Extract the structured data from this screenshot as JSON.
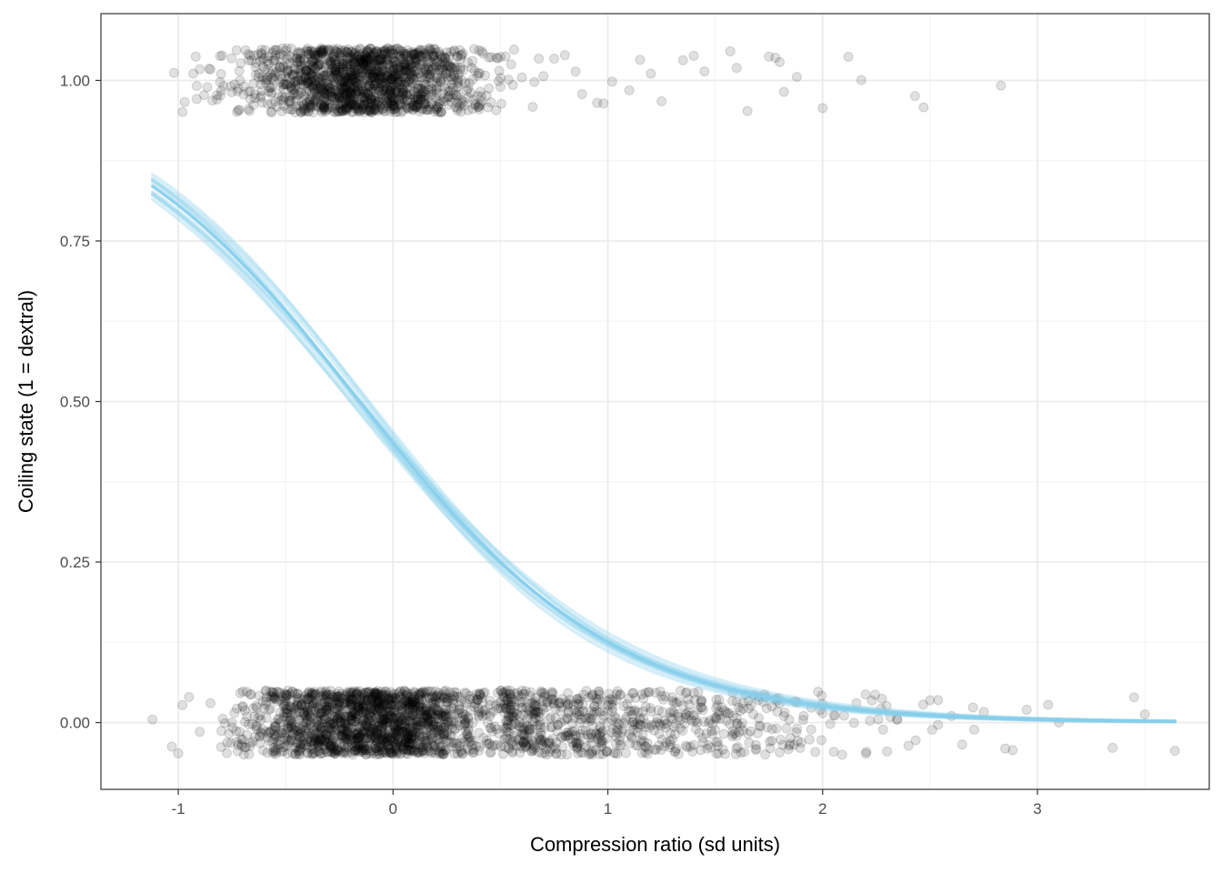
{
  "chart_data": {
    "type": "scatter",
    "title": "",
    "xlabel": "Compression ratio (sd units)",
    "ylabel": "Coiling state (1 = dextral)",
    "xlim": [
      -1.36,
      3.8
    ],
    "ylim": [
      -0.104,
      1.104
    ],
    "x_ticks": [
      -1,
      0,
      1,
      2,
      3
    ],
    "x_tick_labels": [
      "-1",
      "0",
      "1",
      "2",
      "3"
    ],
    "y_ticks": [
      0,
      0.25,
      0.5,
      0.75,
      1
    ],
    "y_tick_labels": [
      "0.00",
      "0.25",
      "0.50",
      "0.75",
      "1.00"
    ],
    "grid": true,
    "legend": "none",
    "points": {
      "description_values": "jittered binary outcomes (y=0 or y=1, jitter ±0.05)",
      "color": "#000000",
      "opacity": 0.12,
      "outcome_1_x_samples": [
        -1.02,
        -0.98,
        -0.97,
        -0.93,
        -0.9,
        -0.88,
        -0.85,
        -0.82,
        -0.8,
        -0.72,
        -0.6,
        -0.5,
        -0.4,
        -0.3,
        -0.2,
        -0.1,
        0,
        0.1,
        0.2,
        0.3,
        0.4,
        0.5,
        0.55,
        0.6,
        0.65,
        0.7,
        0.75,
        0.8,
        0.85,
        0.88,
        0.95,
        0.98,
        1.02,
        1.1,
        1.15,
        1.2,
        1.25,
        1.35,
        1.4,
        1.45,
        1.57,
        1.6,
        1.65,
        1.75,
        1.78,
        1.8,
        1.82,
        1.88,
        2.0,
        2.12,
        2.18,
        2.43,
        2.47,
        2.83
      ],
      "outcome_0_x_samples": [
        -1.12,
        -1.03,
        -1.0,
        -0.98,
        -0.95,
        -0.9,
        -0.85,
        -0.8,
        -0.7,
        -0.6,
        -0.5,
        -0.4,
        -0.3,
        -0.2,
        -0.1,
        0,
        0.1,
        0.2,
        0.3,
        0.4,
        0.5,
        0.6,
        0.7,
        0.8,
        0.9,
        1.0,
        1.1,
        1.2,
        1.3,
        1.4,
        1.5,
        1.6,
        1.7,
        1.8,
        1.9,
        2.0,
        2.1,
        2.2,
        2.3,
        2.4,
        2.5,
        2.6,
        2.65,
        2.7,
        2.75,
        2.85,
        2.95,
        3.05,
        3.1,
        3.35,
        3.45,
        3.5,
        3.64
      ]
    },
    "fitted_curves": {
      "description_values": "posterior logistic fits p = 1/(1+exp(-(a + b*x)))",
      "color": "#87CEEB",
      "x_range": [
        -1.12,
        3.64
      ],
      "central": {
        "intercept": -0.26,
        "slope": -1.68
      },
      "draws": [
        {
          "intercept": -0.26,
          "slope": -1.68
        },
        {
          "intercept": -0.29,
          "slope": -1.64
        },
        {
          "intercept": -0.23,
          "slope": -1.72
        },
        {
          "intercept": -0.31,
          "slope": -1.6
        },
        {
          "intercept": -0.21,
          "slope": -1.76
        },
        {
          "intercept": -0.27,
          "slope": -1.7
        },
        {
          "intercept": -0.25,
          "slope": -1.62
        },
        {
          "intercept": -0.33,
          "slope": -1.66
        },
        {
          "intercept": -0.19,
          "slope": -1.7
        },
        {
          "intercept": -0.28,
          "slope": -1.74
        },
        {
          "intercept": -0.24,
          "slope": -1.58
        },
        {
          "intercept": -0.3,
          "slope": -1.78
        }
      ]
    }
  }
}
